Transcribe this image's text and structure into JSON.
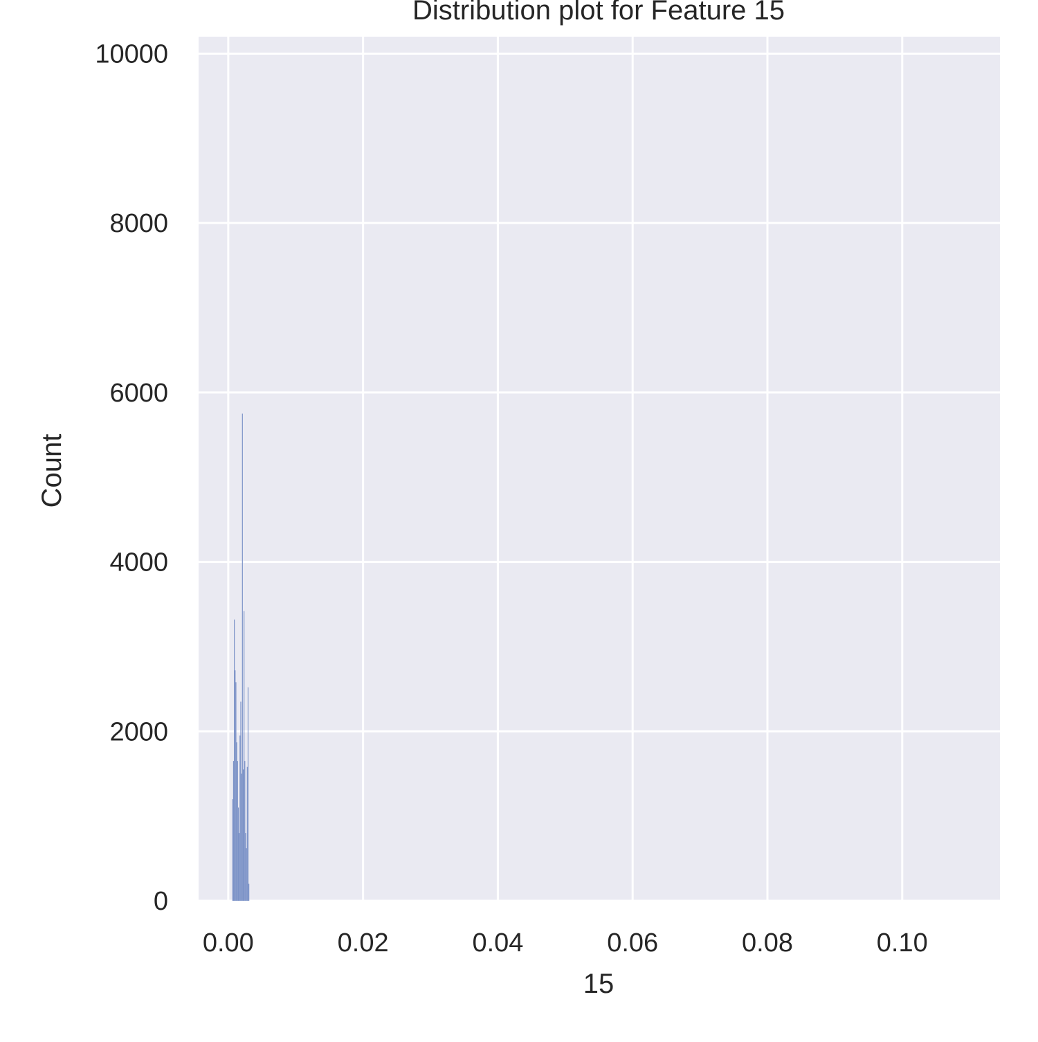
{
  "chart_data": {
    "type": "bar",
    "title": "Distribution plot for Feature 15",
    "xlabel": "15",
    "ylabel": "Count",
    "xlim": [
      -0.0044,
      0.1145
    ],
    "ylim": [
      0,
      10200
    ],
    "x_ticks": [
      0.0,
      0.02,
      0.04,
      0.06,
      0.08,
      0.1
    ],
    "x_tick_labels": [
      "0.00",
      "0.02",
      "0.04",
      "0.06",
      "0.08",
      "0.10"
    ],
    "y_ticks": [
      0,
      2000,
      4000,
      6000,
      8000,
      10000
    ],
    "y_tick_labels": [
      "0",
      "2000",
      "4000",
      "6000",
      "8000",
      "10000"
    ],
    "grid": true,
    "legend": "none",
    "bar_color": "#7b92c7",
    "background_color": "#eaeaf2",
    "grid_color": "#ffffff",
    "bin_width": 0.00012,
    "bins": [
      {
        "x": 0.0006,
        "count": 1200
      },
      {
        "x": 0.00072,
        "count": 1650
      },
      {
        "x": 0.00084,
        "count": 3320
      },
      {
        "x": 0.00096,
        "count": 2720
      },
      {
        "x": 0.00108,
        "count": 2580
      },
      {
        "x": 0.0012,
        "count": 1870
      },
      {
        "x": 0.00132,
        "count": 1650
      },
      {
        "x": 0.00144,
        "count": 1100
      },
      {
        "x": 0.00156,
        "count": 800
      },
      {
        "x": 0.00168,
        "count": 1950
      },
      {
        "x": 0.0018,
        "count": 2350
      },
      {
        "x": 0.00192,
        "count": 1500
      },
      {
        "x": 0.00204,
        "count": 5750
      },
      {
        "x": 0.00216,
        "count": 1550
      },
      {
        "x": 0.00228,
        "count": 3420
      },
      {
        "x": 0.0024,
        "count": 1650
      },
      {
        "x": 0.00252,
        "count": 800
      },
      {
        "x": 0.00264,
        "count": 620
      },
      {
        "x": 0.00276,
        "count": 1580
      },
      {
        "x": 0.00288,
        "count": 2520
      },
      {
        "x": 0.003,
        "count": 200
      }
    ]
  }
}
